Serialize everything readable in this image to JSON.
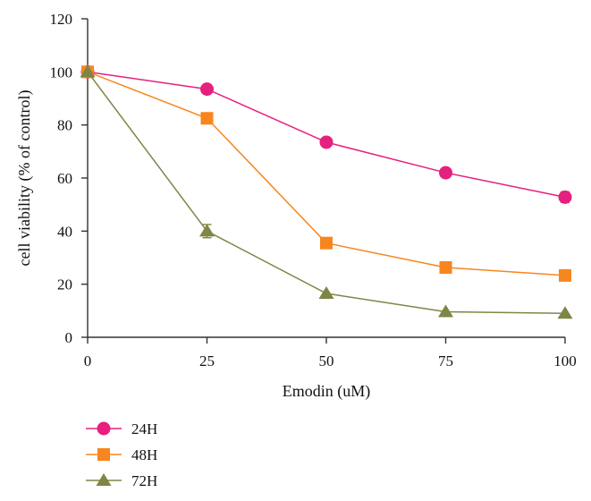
{
  "chart_data": {
    "type": "line",
    "xlabel": "Emodin (uM)",
    "ylabel": "cell viability (% of control)",
    "x": [
      0,
      25,
      50,
      75,
      100
    ],
    "xticks": [
      0,
      25,
      50,
      75,
      100
    ],
    "xtick_labels": [
      "0",
      "25",
      "50",
      "75",
      "100"
    ],
    "yticks": [
      0,
      20,
      40,
      60,
      80,
      100,
      120
    ],
    "ytick_labels": [
      "0",
      "20",
      "40",
      "60",
      "80",
      "100",
      "120"
    ],
    "xlim": [
      0,
      100
    ],
    "ylim": [
      0,
      120
    ],
    "grid": false,
    "legend_position": "bottom-left",
    "series": [
      {
        "name": "24H",
        "color": "#E6207F",
        "marker": "circle",
        "values": [
          100,
          93.5,
          73.5,
          62,
          52.8
        ],
        "errors": [
          0,
          0,
          0,
          0,
          2
        ]
      },
      {
        "name": "48H",
        "color": "#F7861E",
        "marker": "square",
        "values": [
          100,
          82.5,
          35.5,
          26.3,
          23.3
        ],
        "errors": [
          0,
          0,
          0,
          0,
          0
        ]
      },
      {
        "name": "72H",
        "color": "#7F8545",
        "marker": "triangle",
        "values": [
          100,
          40,
          16.5,
          9.6,
          9
        ],
        "errors": [
          0,
          2.5,
          0,
          0,
          0
        ]
      }
    ]
  }
}
